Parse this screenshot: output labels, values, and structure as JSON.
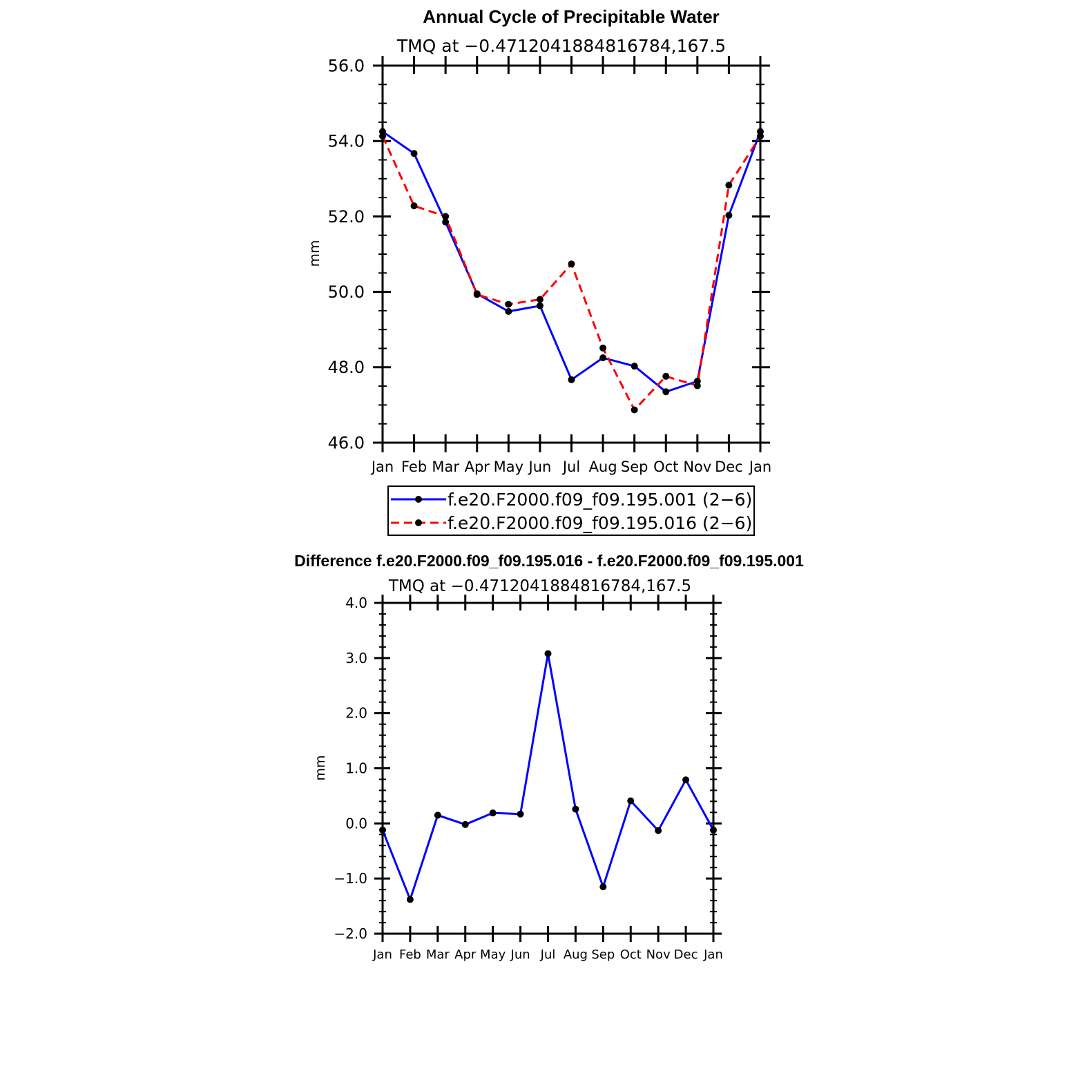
{
  "colors": {
    "series1": "#0000ff",
    "series2": "#ff0000",
    "marker": "#000000",
    "axis": "#000000"
  },
  "chart_data": [
    {
      "type": "line",
      "title": "Annual Cycle of Precipitable Water",
      "subtitle": "TMQ at −0.4712041884816784,167.5",
      "xlabel": "",
      "ylabel": "mm",
      "categories": [
        "Jan",
        "Feb",
        "Mar",
        "Apr",
        "May",
        "Jun",
        "Jul",
        "Aug",
        "Sep",
        "Oct",
        "Nov",
        "Dec",
        "Jan"
      ],
      "ylim": [
        46.0,
        56.0
      ],
      "yticks": [
        "46.0",
        "48.0",
        "50.0",
        "52.0",
        "54.0",
        "56.0"
      ],
      "grid": false,
      "legend_position": "below",
      "series": [
        {
          "name": "f.e20.F2000.f09_f09.195.001 (2−6)",
          "style": "solid",
          "color": "#0000ff",
          "values": [
            54.25,
            53.67,
            51.85,
            49.95,
            49.48,
            49.63,
            47.67,
            48.25,
            48.03,
            47.35,
            47.63,
            52.03,
            54.25
          ]
        },
        {
          "name": "f.e20.F2000.f09_f09.195.016 (2−6)",
          "style": "dashed",
          "color": "#ff0000",
          "values": [
            54.13,
            52.28,
            52.0,
            49.93,
            49.67,
            49.8,
            50.74,
            48.51,
            46.87,
            47.76,
            47.51,
            52.83,
            54.13
          ]
        }
      ]
    },
    {
      "type": "line",
      "title": "Difference f.e20.F2000.f09_f09.195.016 - f.e20.F2000.f09_f09.195.001",
      "subtitle": "TMQ at −0.4712041884816784,167.5",
      "xlabel": "",
      "ylabel": "mm",
      "categories": [
        "Jan",
        "Feb",
        "Mar",
        "Apr",
        "May",
        "Jun",
        "Jul",
        "Aug",
        "Sep",
        "Oct",
        "Nov",
        "Dec",
        "Jan"
      ],
      "ylim": [
        -2.0,
        4.0
      ],
      "yticks": [
        "−2.0",
        "−1.0",
        "0.0",
        "1.0",
        "2.0",
        "3.0",
        "4.0"
      ],
      "grid": false,
      "series": [
        {
          "style": "solid",
          "color": "#0000ff",
          "values": [
            -0.12,
            -1.38,
            0.15,
            -0.02,
            0.19,
            0.17,
            3.08,
            0.26,
            -1.15,
            0.41,
            -0.13,
            0.79,
            -0.12
          ]
        }
      ]
    }
  ]
}
